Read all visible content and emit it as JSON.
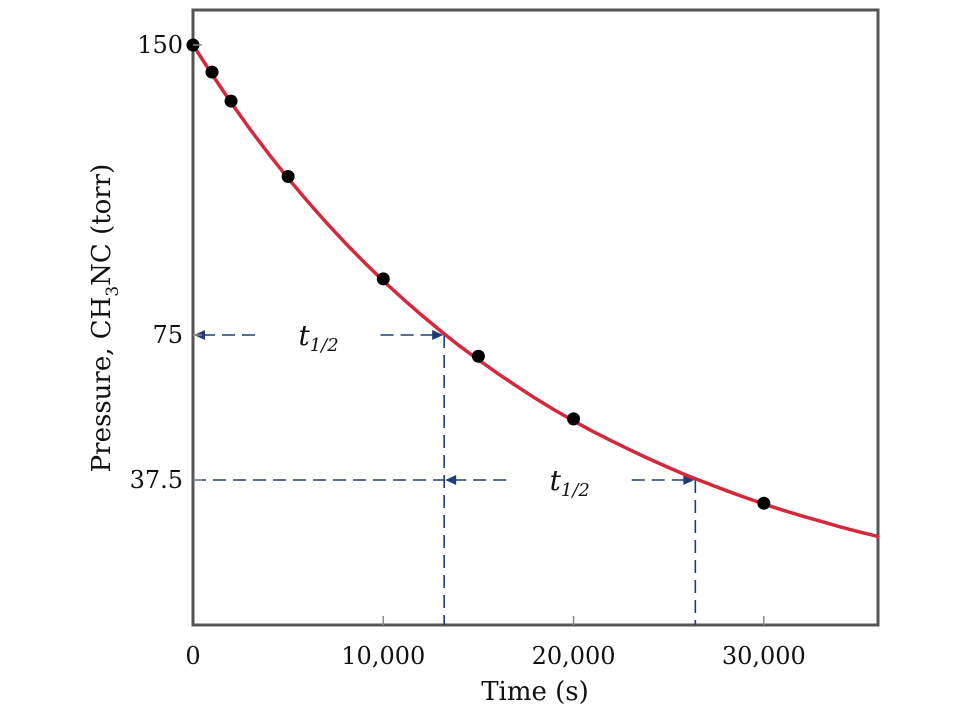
{
  "chart_data": {
    "type": "scatter",
    "xlabel": "Time (s)",
    "ylabel": {
      "prefix": "Pressure, CH",
      "sub": "3",
      "suffix": "NC (torr)"
    },
    "xlim": [
      0,
      36000
    ],
    "ylim": [
      0,
      150
    ],
    "x_ticks": [
      {
        "value": 0,
        "label": "0"
      },
      {
        "value": 10000,
        "label": "10,000"
      },
      {
        "value": 20000,
        "label": "20,000"
      },
      {
        "value": 30000,
        "label": "30,000"
      }
    ],
    "y_ticks": [
      {
        "value": 150,
        "label": "150"
      },
      {
        "value": 75,
        "label": "75"
      },
      {
        "value": 37.5,
        "label": "37.5"
      }
    ],
    "grid": false,
    "series": [
      {
        "type": "scatter",
        "color": "#000000",
        "points": [
          {
            "x": 0,
            "y": 150
          },
          {
            "x": 1000,
            "y": 143
          },
          {
            "x": 2000,
            "y": 135.5
          },
          {
            "x": 5000,
            "y": 116
          },
          {
            "x": 10000,
            "y": 89.5
          },
          {
            "x": 15000,
            "y": 69.5
          },
          {
            "x": 20000,
            "y": 53.3
          },
          {
            "x": 30000,
            "y": 31.5
          }
        ]
      },
      {
        "type": "line",
        "color": "#d6283c",
        "x": [
          0,
          1000,
          2000,
          3000,
          4000,
          5000,
          6000,
          7000,
          8000,
          9000,
          10000,
          11000,
          12000,
          13000,
          14000,
          15000,
          16000,
          17000,
          18000,
          19000,
          20000,
          21000,
          22000,
          23000,
          24000,
          25000,
          26000,
          27000,
          28000,
          29000,
          30000,
          31000,
          32000,
          33000,
          34000,
          35000,
          36000
        ],
        "y": [
          150,
          142.4,
          135.1,
          128.2,
          121.7,
          115.5,
          109.7,
          104.1,
          98.8,
          93.8,
          89.0,
          84.5,
          80.2,
          76.1,
          72.2,
          68.6,
          65.1,
          61.8,
          58.6,
          55.6,
          52.8,
          50.1,
          47.6,
          45.2,
          42.9,
          40.7,
          38.6,
          36.7,
          34.8,
          33.0,
          31.3,
          29.7,
          28.2,
          26.8,
          25.4,
          24.1,
          22.9
        ]
      }
    ],
    "annotations": [
      {
        "type": "half-life",
        "label": "t",
        "sub": "1/2",
        "from_x": 0,
        "to_x": 13200,
        "y": 75
      },
      {
        "type": "half-life",
        "label": "t",
        "sub": "1/2",
        "from_x": 13200,
        "to_x": 26400,
        "y": 37.5
      }
    ],
    "colors": {
      "curve": "#d6283c",
      "points": "#000000",
      "annotation": "#1f3d73",
      "frame": "#555555"
    }
  }
}
